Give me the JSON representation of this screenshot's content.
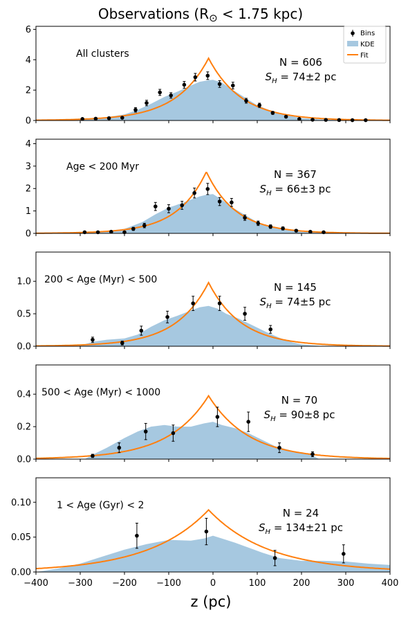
{
  "figure": {
    "title": "Observations (R",
    "title_symbol": "⊙",
    "title_tail": " < 1.75 kpc)",
    "xlabel": "z (pc)",
    "x_ticks": [
      "−400",
      "−300",
      "−200",
      "−100",
      "0",
      "100",
      "200",
      "300",
      "400"
    ],
    "legend": {
      "bins": "Bins",
      "kde": "KDE",
      "fit": "Fit"
    }
  },
  "colors": {
    "fit": "#ff7f0e",
    "kde": "#a6c8e0",
    "bins": "#000000"
  },
  "chart_data": [
    {
      "type": "line",
      "label": "All clusters",
      "n_text": "N = 606",
      "sh_text": "= 74±2 pc",
      "xlim": [
        -400,
        400
      ],
      "ylim": [
        0,
        6.2
      ],
      "y_ticks": [
        0,
        2,
        4,
        6
      ],
      "y_tick_labels": [
        "0",
        "2",
        "4",
        "6"
      ],
      "fit": {
        "peak": 4.1,
        "center": -10,
        "scale_height": 74
      },
      "kde": {
        "x": [
          -400,
          -350,
          -300,
          -250,
          -200,
          -170,
          -140,
          -110,
          -80,
          -50,
          -30,
          -10,
          0,
          20,
          40,
          70,
          100,
          130,
          160,
          200,
          250,
          300,
          350,
          400
        ],
        "y": [
          0.01,
          0.03,
          0.08,
          0.17,
          0.4,
          0.7,
          1.1,
          1.55,
          1.9,
          2.3,
          2.55,
          2.65,
          2.68,
          2.5,
          2.1,
          1.55,
          1.0,
          0.65,
          0.38,
          0.16,
          0.06,
          0.02,
          0.01,
          0.0
        ]
      },
      "bins": {
        "x": [
          -295,
          -265,
          -235,
          -205,
          -175,
          -150,
          -120,
          -95,
          -65,
          -40,
          -12,
          15,
          45,
          75,
          105,
          135,
          165,
          195,
          225,
          255,
          285,
          315,
          345
        ],
        "y": [
          0.1,
          0.12,
          0.15,
          0.18,
          0.7,
          1.15,
          1.85,
          1.65,
          2.35,
          2.85,
          2.95,
          2.4,
          2.3,
          1.3,
          1.0,
          0.5,
          0.25,
          0.1,
          0.05,
          0.04,
          0.03,
          0.02,
          0.02
        ],
        "err": [
          0.05,
          0.05,
          0.06,
          0.07,
          0.15,
          0.18,
          0.2,
          0.18,
          0.22,
          0.25,
          0.25,
          0.22,
          0.22,
          0.16,
          0.14,
          0.1,
          0.07,
          0.04,
          0.03,
          0.03,
          0.02,
          0.02,
          0.02
        ]
      }
    },
    {
      "type": "line",
      "label": "Age < 200 Myr",
      "n_text": "N = 367",
      "sh_text": "= 66±3 pc",
      "xlim": [
        -400,
        400
      ],
      "ylim": [
        0,
        4.2
      ],
      "y_ticks": [
        0,
        1,
        2,
        3,
        4
      ],
      "y_tick_labels": [
        "0",
        "1",
        "2",
        "3",
        "4"
      ],
      "fit": {
        "peak": 2.75,
        "center": -15,
        "scale_height": 66
      },
      "kde": {
        "x": [
          -400,
          -300,
          -250,
          -200,
          -160,
          -130,
          -100,
          -70,
          -50,
          -30,
          -15,
          0,
          20,
          40,
          70,
          100,
          130,
          160,
          200,
          250,
          300,
          400
        ],
        "y": [
          0.0,
          0.03,
          0.08,
          0.2,
          0.5,
          0.85,
          1.15,
          1.35,
          1.5,
          1.65,
          1.72,
          1.75,
          1.5,
          1.2,
          0.85,
          0.5,
          0.3,
          0.18,
          0.07,
          0.02,
          0.01,
          0.0
        ]
      },
      "bins": {
        "x": [
          -290,
          -260,
          -230,
          -200,
          -180,
          -155,
          -130,
          -100,
          -70,
          -42,
          -12,
          15,
          42,
          72,
          102,
          130,
          158,
          188,
          220,
          250
        ],
        "y": [
          0.05,
          0.05,
          0.07,
          0.05,
          0.2,
          0.35,
          1.2,
          1.1,
          1.25,
          1.8,
          1.98,
          1.42,
          1.38,
          0.7,
          0.45,
          0.3,
          0.22,
          0.12,
          0.07,
          0.05
        ],
        "err": [
          0.03,
          0.03,
          0.04,
          0.03,
          0.07,
          0.1,
          0.18,
          0.18,
          0.18,
          0.22,
          0.25,
          0.18,
          0.18,
          0.12,
          0.1,
          0.08,
          0.07,
          0.05,
          0.04,
          0.03
        ]
      }
    },
    {
      "type": "line",
      "label": "200 < Age (Myr) < 500",
      "n_text": "N = 145",
      "sh_text": "= 74±5 pc",
      "xlim": [
        -400,
        400
      ],
      "ylim": [
        0,
        1.45
      ],
      "y_ticks": [
        0,
        0.5,
        1.0
      ],
      "y_tick_labels": [
        "0.0",
        "0.5",
        "1.0"
      ],
      "fit": {
        "peak": 0.98,
        "center": -10,
        "scale_height": 74
      },
      "kde": {
        "x": [
          -400,
          -300,
          -270,
          -240,
          -200,
          -170,
          -140,
          -110,
          -80,
          -50,
          -30,
          -10,
          10,
          30,
          60,
          90,
          120,
          150,
          180,
          200,
          250,
          400
        ],
        "y": [
          0.0,
          0.01,
          0.07,
          0.1,
          0.12,
          0.18,
          0.3,
          0.4,
          0.47,
          0.55,
          0.6,
          0.62,
          0.58,
          0.5,
          0.42,
          0.32,
          0.22,
          0.13,
          0.06,
          0.03,
          0.0,
          0.0
        ]
      },
      "bins": {
        "x": [
          -272,
          -205,
          -162,
          -103,
          -45,
          15,
          72,
          130
        ],
        "y": [
          0.1,
          0.05,
          0.24,
          0.45,
          0.66,
          0.66,
          0.5,
          0.26
        ],
        "err": [
          0.04,
          0.03,
          0.07,
          0.09,
          0.11,
          0.11,
          0.1,
          0.06
        ]
      }
    },
    {
      "type": "line",
      "label": "500 < Age (Myr) < 1000",
      "n_text": "N = 70",
      "sh_text": "= 90±8 pc",
      "xlim": [
        -400,
        400
      ],
      "ylim": [
        0,
        0.58
      ],
      "y_ticks": [
        0,
        0.2,
        0.4
      ],
      "y_tick_labels": [
        "0.0",
        "0.2",
        "0.4"
      ],
      "fit": {
        "peak": 0.39,
        "center": -10,
        "scale_height": 90
      },
      "kde": {
        "x": [
          -400,
          -290,
          -270,
          -240,
          -200,
          -170,
          -140,
          -110,
          -80,
          -50,
          -20,
          0,
          20,
          50,
          80,
          110,
          140,
          180,
          220,
          240,
          400
        ],
        "y": [
          0.0,
          0.0,
          0.03,
          0.07,
          0.13,
          0.17,
          0.2,
          0.21,
          0.2,
          0.2,
          0.22,
          0.23,
          0.21,
          0.19,
          0.16,
          0.12,
          0.08,
          0.05,
          0.03,
          0.0,
          0.0
        ]
      },
      "bins": {
        "x": [
          -272,
          -212,
          -152,
          -90,
          10,
          80,
          150,
          225
        ],
        "y": [
          0.02,
          0.07,
          0.17,
          0.16,
          0.26,
          0.23,
          0.07,
          0.03
        ],
        "err": [
          0.01,
          0.03,
          0.05,
          0.05,
          0.06,
          0.06,
          0.03,
          0.015
        ]
      }
    },
    {
      "type": "line",
      "label": "1 < Age (Gyr) < 2",
      "n_text": "N = 24",
      "sh_text": "= 134±21 pc",
      "xlim": [
        -400,
        400
      ],
      "ylim": [
        0,
        0.135
      ],
      "y_ticks": [
        0,
        0.05,
        0.1
      ],
      "y_tick_labels": [
        "0.00",
        "0.05",
        "0.10"
      ],
      "fit": {
        "peak": 0.089,
        "center": -10,
        "scale_height": 134
      },
      "kde": {
        "x": [
          -400,
          -350,
          -300,
          -250,
          -200,
          -150,
          -100,
          -50,
          -20,
          0,
          20,
          50,
          80,
          110,
          150,
          200,
          250,
          300,
          350,
          400
        ],
        "y": [
          0.0,
          0.005,
          0.012,
          0.022,
          0.032,
          0.04,
          0.046,
          0.045,
          0.048,
          0.052,
          0.048,
          0.042,
          0.035,
          0.028,
          0.02,
          0.016,
          0.016,
          0.015,
          0.012,
          0.01
        ]
      },
      "bins": {
        "x": [
          -172,
          -15,
          140,
          295
        ],
        "y": [
          0.052,
          0.058,
          0.02,
          0.026
        ],
        "err": [
          0.018,
          0.019,
          0.011,
          0.013
        ]
      }
    }
  ]
}
